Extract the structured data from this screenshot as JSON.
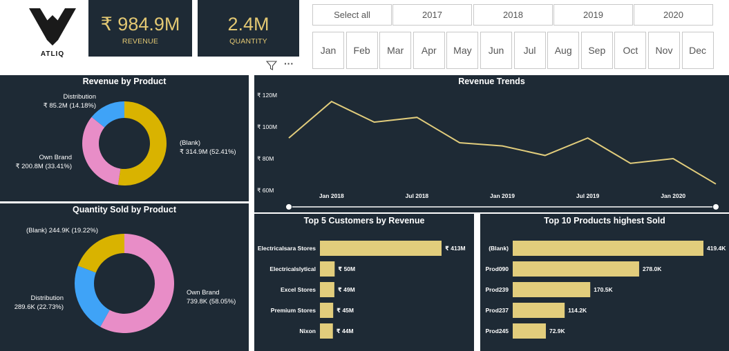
{
  "logo": {
    "text": "ATLIQ"
  },
  "kpis": {
    "revenue": {
      "value": "₹ 984.9M",
      "label": "REVENUE"
    },
    "quantity": {
      "value": "2.4M",
      "label": "QUANTITY"
    }
  },
  "toolbar": {
    "more": "···"
  },
  "year_slicer": [
    "Select all",
    "2017",
    "2018",
    "2019",
    "2020"
  ],
  "month_slicer": [
    "Jan",
    "Feb",
    "Mar",
    "Apr",
    "May",
    "Jun",
    "Jul",
    "Aug",
    "Sep",
    "Oct",
    "Nov",
    "Dec"
  ],
  "colors": {
    "panel": "#1e2a35",
    "gold": "#d9b300",
    "pink": "#e88dc7",
    "blue": "#3fa3f7",
    "bar": "#e2cd7c",
    "line": "#e2cd7c"
  },
  "chart_data": [
    {
      "type": "pie",
      "title": "Revenue by Product",
      "slices": [
        {
          "name": "(Blank)",
          "value": 314.9,
          "label": "₹ 314.9M (52.41%)",
          "color": "#d9b300"
        },
        {
          "name": "Own Brand",
          "value": 200.8,
          "label": "₹ 200.8M (33.41%)",
          "color": "#e88dc7"
        },
        {
          "name": "Distribution",
          "value": 85.2,
          "label": "₹ 85.2M (14.18%)",
          "color": "#3fa3f7"
        }
      ]
    },
    {
      "type": "pie",
      "title": "Quantity Sold by Product",
      "slices": [
        {
          "name": "Own Brand",
          "value": 739.8,
          "label": "739.8K (58.05%)",
          "color": "#e88dc7"
        },
        {
          "name": "Distribution",
          "value": 289.6,
          "label": "289.6K (22.73%)",
          "color": "#3fa3f7"
        },
        {
          "name": "(Blank)",
          "value": 244.9,
          "label": "244.9K (19.22%)",
          "color": "#d9b300"
        }
      ]
    },
    {
      "type": "line",
      "title": "Revenue Trends",
      "x": [
        "2017-10",
        "2018-01",
        "2018-04",
        "2018-07",
        "2018-10",
        "2019-01",
        "2019-04",
        "2019-07",
        "2019-10",
        "2020-01",
        "2020-04"
      ],
      "values": [
        93,
        116,
        103,
        106,
        90,
        88,
        82,
        93,
        77,
        80,
        64
      ],
      "ylim": [
        60,
        120
      ],
      "yticks": [
        60,
        80,
        100,
        120
      ],
      "ytick_labels": [
        "₹ 60M",
        "₹ 80M",
        "₹ 100M",
        "₹ 120M"
      ],
      "xticks": [
        "2018-01",
        "2018-07",
        "2019-01",
        "2019-07",
        "2020-01"
      ],
      "xtick_labels": [
        "Jan 2018",
        "Jul 2018",
        "Jan 2019",
        "Jul 2019",
        "Jan 2020"
      ]
    },
    {
      "type": "bar",
      "title": "Top 5 Customers by Revenue",
      "categories": [
        "Electricalsara Stores",
        "Electricalslytical",
        "Excel Stores",
        "Premium Stores",
        "Nixon"
      ],
      "values": [
        413,
        50,
        49,
        45,
        44
      ],
      "labels": [
        "₹ 413M",
        "₹ 50M",
        "₹ 49M",
        "₹ 45M",
        "₹ 44M"
      ]
    },
    {
      "type": "bar",
      "title": "Top 10 Products highest Sold",
      "categories": [
        "(Blank)",
        "Prod090",
        "Prod239",
        "Prod237",
        "Prod245"
      ],
      "values": [
        419.4,
        278.0,
        170.5,
        114.2,
        72.9
      ],
      "labels": [
        "419.4K",
        "278.0K",
        "170.5K",
        "114.2K",
        "72.9K"
      ]
    }
  ]
}
